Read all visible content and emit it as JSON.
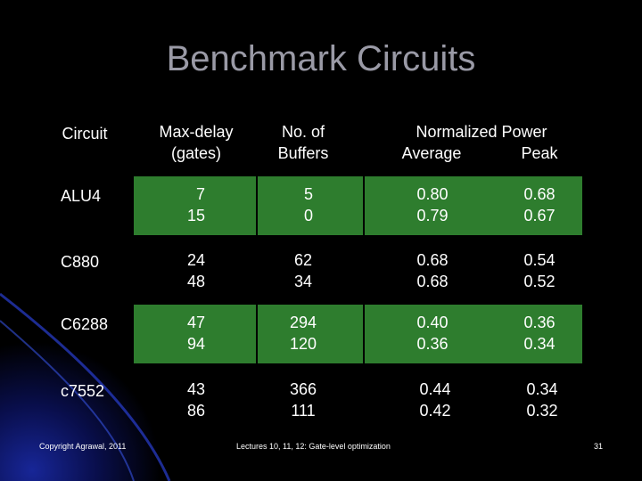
{
  "title": "Benchmark Circuits",
  "headers": {
    "circuit": "Circuit",
    "max_delay_1": "Max-delay",
    "max_delay_2": "(gates)",
    "buffers_1": "No. of",
    "buffers_2": "Buffers",
    "power": "Normalized Power",
    "average": "Average",
    "peak": "Peak"
  },
  "rows": [
    {
      "circuit": "ALU4",
      "delay": [
        "7",
        "15"
      ],
      "buffers": [
        "5",
        "0"
      ],
      "average": [
        "0.80",
        "0.79"
      ],
      "peak": [
        "0.68",
        "0.67"
      ]
    },
    {
      "circuit": "C880",
      "delay": [
        "24",
        "48"
      ],
      "buffers": [
        "62",
        "34"
      ],
      "average": [
        "0.68",
        "0.68"
      ],
      "peak": [
        "0.54",
        "0.52"
      ]
    },
    {
      "circuit": "C6288",
      "delay": [
        "47",
        "94"
      ],
      "buffers": [
        "294",
        "120"
      ],
      "average": [
        "0.40",
        "0.36"
      ],
      "peak": [
        "0.36",
        "0.34"
      ]
    },
    {
      "circuit": "c7552",
      "delay": [
        "43",
        "86"
      ],
      "buffers": [
        "366",
        "111"
      ],
      "average": [
        "0.44",
        "0.42"
      ],
      "peak": [
        "0.34",
        "0.32"
      ]
    }
  ],
  "footer": {
    "copyright": "Copyright Agrawal, 2011",
    "lecture": "Lectures 10, 11, 12: Gate-level optimization",
    "page": "31"
  },
  "colors": {
    "band": "#2e7d2e",
    "title": "#9a9aa6"
  }
}
